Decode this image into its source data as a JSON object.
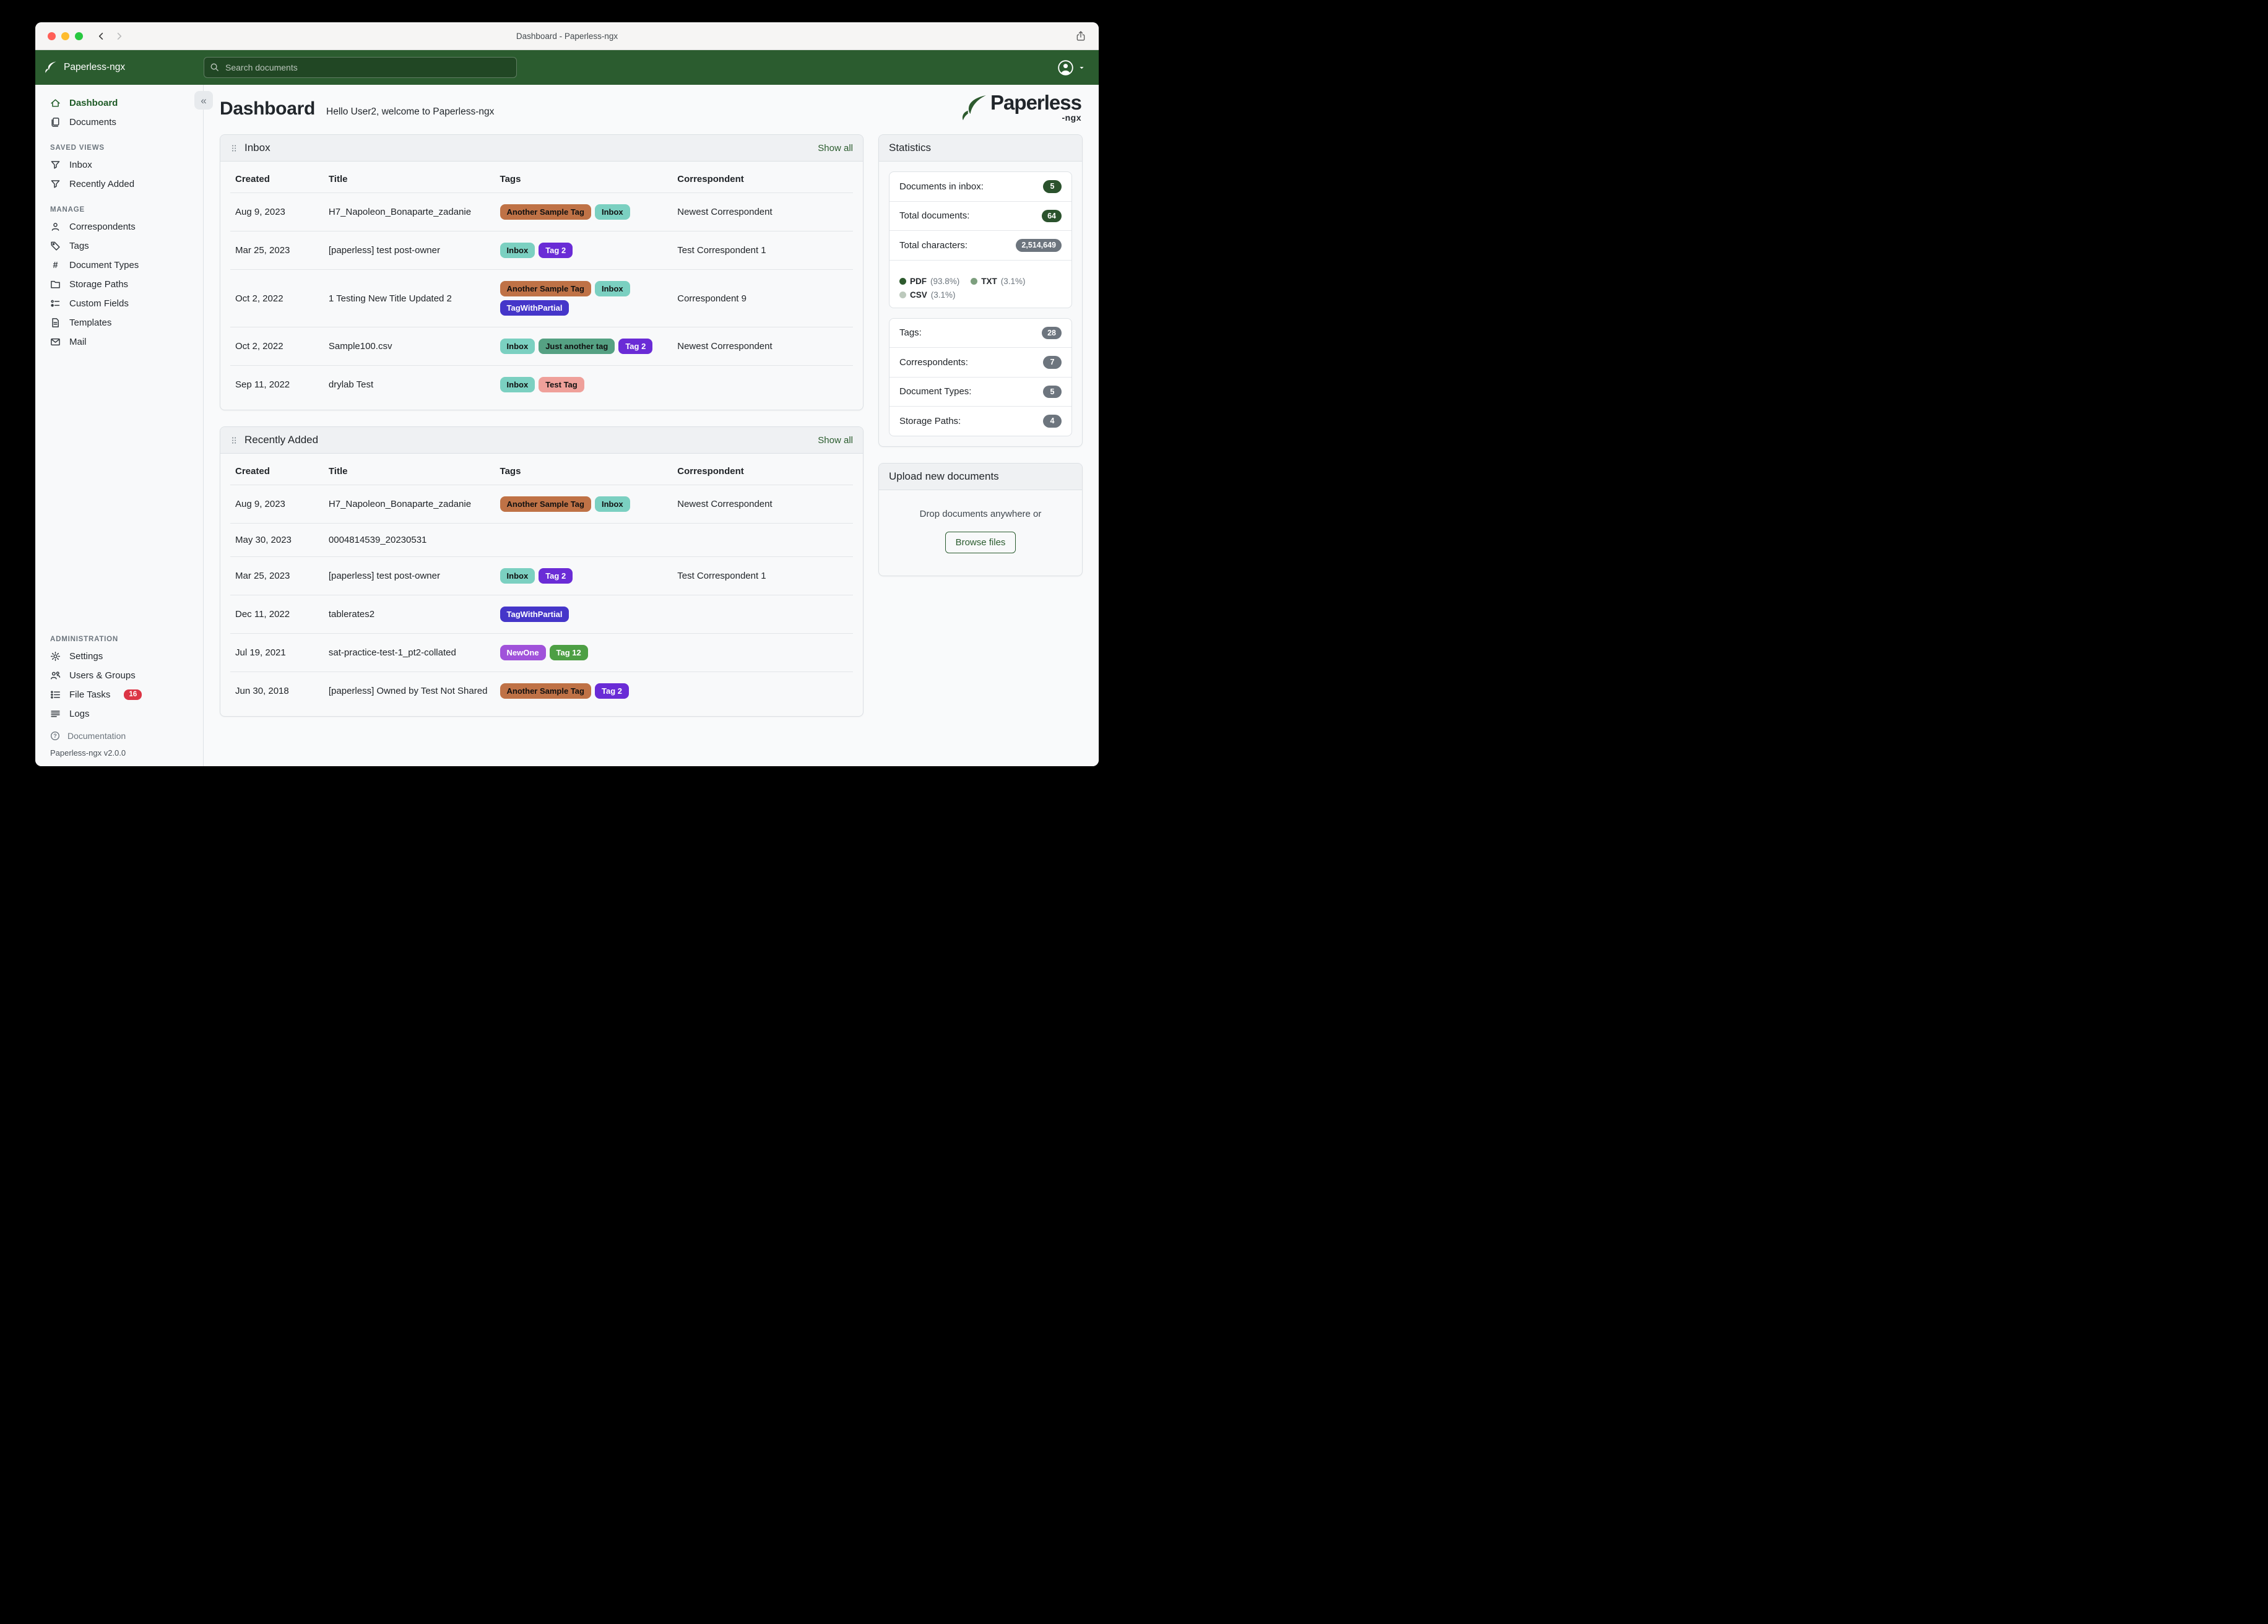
{
  "window": {
    "title": "Dashboard - Paperless-ngx"
  },
  "navbar": {
    "brand": "Paperless-ngx",
    "search_placeholder": "Search documents"
  },
  "sidebar": {
    "sections": [
      {
        "items": [
          {
            "label": "Dashboard",
            "icon": "house",
            "active": true
          },
          {
            "label": "Documents",
            "icon": "files"
          }
        ]
      },
      {
        "title": "SAVED VIEWS",
        "items": [
          {
            "label": "Inbox",
            "icon": "funnel"
          },
          {
            "label": "Recently Added",
            "icon": "funnel"
          }
        ]
      },
      {
        "title": "MANAGE",
        "items": [
          {
            "label": "Correspondents",
            "icon": "person"
          },
          {
            "label": "Tags",
            "icon": "tag"
          },
          {
            "label": "Document Types",
            "icon": "hash"
          },
          {
            "label": "Storage Paths",
            "icon": "folder"
          },
          {
            "label": "Custom Fields",
            "icon": "fields"
          },
          {
            "label": "Templates",
            "icon": "templates"
          },
          {
            "label": "Mail",
            "icon": "mail"
          }
        ]
      },
      {
        "title": "ADMINISTRATION",
        "push": true,
        "items": [
          {
            "label": "Settings",
            "icon": "gear"
          },
          {
            "label": "Users & Groups",
            "icon": "people"
          },
          {
            "label": "File Tasks",
            "icon": "listtask",
            "badge": "16"
          },
          {
            "label": "Logs",
            "icon": "logs"
          }
        ]
      }
    ],
    "documentation": {
      "label": "Documentation",
      "icon": "question"
    },
    "version": "Paperless-ngx v2.0.0"
  },
  "page": {
    "title": "Dashboard",
    "greeting": "Hello User2, welcome to Paperless-ngx"
  },
  "logo": {
    "text": "Paperless",
    "suffix": "-ngx"
  },
  "tag_colors": {
    "Another Sample Tag": {
      "bg": "#bf7246",
      "fg": "#101010"
    },
    "Inbox": {
      "bg": "#7bd0c1",
      "fg": "#101010"
    },
    "Tag 2": {
      "bg": "#6a2cd6",
      "fg": "#ffffff"
    },
    "TagWithPartial": {
      "bg": "#4536c9",
      "fg": "#ffffff"
    },
    "Just another tag": {
      "bg": "#55a183",
      "fg": "#101010"
    },
    "Test Tag": {
      "bg": "#efa09a",
      "fg": "#101010"
    },
    "NewOne": {
      "bg": "#a052da",
      "fg": "#ffffff"
    },
    "Tag 12": {
      "bg": "#4d9f44",
      "fg": "#ffffff"
    }
  },
  "widgets": [
    {
      "id": "inbox",
      "title": "Inbox",
      "show_all": "Show all",
      "columns": [
        "Created",
        "Title",
        "Tags",
        "Correspondent"
      ],
      "rows": [
        {
          "created": "Aug 9, 2023",
          "title": "H7_Napoleon_Bonaparte_zadanie",
          "tags": [
            "Another Sample Tag",
            "Inbox"
          ],
          "correspondent": "Newest Correspondent"
        },
        {
          "created": "Mar 25, 2023",
          "title": "[paperless] test post-owner",
          "tags": [
            "Inbox",
            "Tag 2"
          ],
          "correspondent": "Test Correspondent 1"
        },
        {
          "created": "Oct 2, 2022",
          "title": "1 Testing New Title Updated 2",
          "tags": [
            "Another Sample Tag",
            "Inbox",
            "TagWithPartial"
          ],
          "correspondent": "Correspondent 9"
        },
        {
          "created": "Oct 2, 2022",
          "title": "Sample100.csv",
          "tags": [
            "Inbox",
            "Just another tag",
            "Tag 2"
          ],
          "correspondent": "Newest Correspondent"
        },
        {
          "created": "Sep 11, 2022",
          "title": "drylab Test",
          "tags": [
            "Inbox",
            "Test Tag"
          ],
          "correspondent": ""
        }
      ]
    },
    {
      "id": "recently-added",
      "title": "Recently Added",
      "show_all": "Show all",
      "columns": [
        "Created",
        "Title",
        "Tags",
        "Correspondent"
      ],
      "rows": [
        {
          "created": "Aug 9, 2023",
          "title": "H7_Napoleon_Bonaparte_zadanie",
          "tags": [
            "Another Sample Tag",
            "Inbox"
          ],
          "correspondent": "Newest Correspondent"
        },
        {
          "created": "May 30, 2023",
          "title": "0004814539_20230531",
          "tags": [],
          "correspondent": ""
        },
        {
          "created": "Mar 25, 2023",
          "title": "[paperless] test post-owner",
          "tags": [
            "Inbox",
            "Tag 2"
          ],
          "correspondent": "Test Correspondent 1"
        },
        {
          "created": "Dec 11, 2022",
          "title": "tablerates2",
          "tags": [
            "TagWithPartial"
          ],
          "correspondent": ""
        },
        {
          "created": "Jul 19, 2021",
          "title": "sat-practice-test-1_pt2-collated",
          "tags": [
            "NewOne",
            "Tag 12"
          ],
          "correspondent": ""
        },
        {
          "created": "Jun 30, 2018",
          "title": "[paperless] Owned by Test Not Shared",
          "tags": [
            "Another Sample Tag",
            "Tag 2"
          ],
          "correspondent": ""
        }
      ]
    }
  ],
  "statistics": {
    "title": "Statistics",
    "rows1": [
      {
        "label": "Documents in inbox:",
        "value": "5",
        "style": "green"
      },
      {
        "label": "Total documents:",
        "value": "64",
        "style": "green"
      },
      {
        "label": "Total characters:",
        "value": "2,514,649",
        "style": "gray"
      }
    ],
    "chart": {
      "type": "stacked-bar",
      "series": "Document file types",
      "segments": [
        {
          "label": "PDF",
          "value": 93.8,
          "pct_label": "(93.8%)",
          "color": "#2d5a2e"
        },
        {
          "label": "TXT",
          "value": 3.1,
          "pct_label": "(3.1%)",
          "color": "#7d9f7e"
        },
        {
          "label": "CSV",
          "value": 3.1,
          "pct_label": "(3.1%)",
          "color": "#bcc9bc"
        }
      ]
    },
    "rows2": [
      {
        "label": "Tags:",
        "value": "28",
        "style": "gray"
      },
      {
        "label": "Correspondents:",
        "value": "7",
        "style": "gray"
      },
      {
        "label": "Document Types:",
        "value": "5",
        "style": "gray"
      },
      {
        "label": "Storage Paths:",
        "value": "4",
        "style": "gray"
      }
    ]
  },
  "upload": {
    "title": "Upload new documents",
    "hint": "Drop documents anywhere or",
    "button": "Browse files"
  }
}
